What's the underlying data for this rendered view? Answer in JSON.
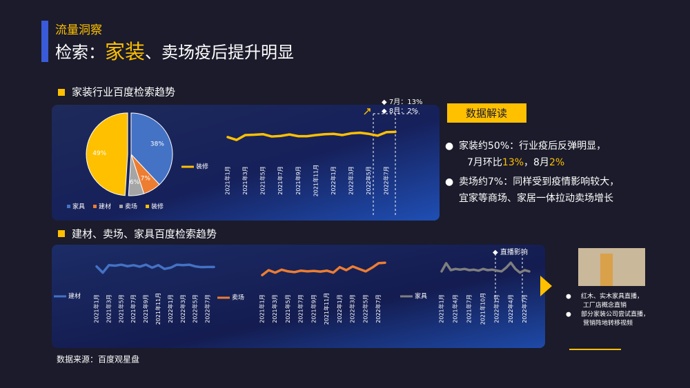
{
  "header": {
    "section": "流量洞察",
    "title_prefix": "检索：",
    "title_highlight": "家装",
    "title_suffix": "、卖场疫后提升明显"
  },
  "section1": "家装行业百度检索趋势",
  "section2": "建材、卖场、家具百度检索趋势",
  "source": "数据来源：百度观星盘",
  "insights": {
    "title": "数据解读",
    "items": [
      {
        "lines": [
          [
            "家装约50%：行业疫后反弹明显，"
          ],
          [
            "7月环比",
            "13%",
            "，8月",
            "2%"
          ]
        ]
      },
      {
        "lines": [
          [
            "卖场约7%：同样受到疫情影响较大，"
          ],
          [
            "宜家等商场、家居一体拉动卖场增长"
          ]
        ]
      }
    ]
  },
  "side_notes": [
    {
      "lines": [
        "红木、实木家具直播，",
        "工厂店概念直销"
      ]
    },
    {
      "lines": [
        "部分家装公司尝试直播，",
        "营销阵地转移视频"
      ]
    }
  ],
  "chart_data": [
    {
      "type": "pie",
      "categories": [
        "家具",
        "建材",
        "卖场",
        "装修"
      ],
      "values": [
        38,
        7,
        6,
        49
      ],
      "value_labels": [
        "38%",
        "7%",
        "6%",
        "49%"
      ],
      "colors": [
        "#4472c4",
        "#ed7d31",
        "#a5a5a5",
        "#ffc000"
      ],
      "legend": "bottom"
    },
    {
      "type": "line",
      "categories": [
        "2021年1月",
        null,
        "2021年3月",
        null,
        "2021年5月",
        null,
        "2021年7月",
        null,
        "2021年9月",
        null,
        "2021年11月",
        null,
        "2022年1月",
        null,
        "2022年3月",
        null,
        "2022年5月",
        null,
        "2022年7月",
        null
      ],
      "series": [
        {
          "name": "装修",
          "color": "#ffc000",
          "values": [
            55,
            45,
            62,
            63,
            65,
            57,
            59,
            64,
            58,
            58,
            62,
            65,
            66,
            62,
            68,
            70,
            66,
            60,
            72,
            73
          ]
        }
      ],
      "ylim": [
        0,
        100
      ],
      "annotations": [
        "7月：13%",
        "8月：2%"
      ],
      "legend": "left"
    },
    {
      "type": "line",
      "categories": [
        "2021年1月",
        null,
        "2021年3月",
        null,
        "2021年5月",
        null,
        "2021年7月",
        null,
        "2021年9月",
        null,
        "2021年11月",
        null,
        "2022年1月",
        null,
        "2022年3月",
        null,
        "2022年5月",
        null,
        "2022年7月",
        null
      ],
      "series": [
        {
          "name": "建材",
          "color": "#4472c4",
          "values": [
            65,
            40,
            70,
            68,
            72,
            66,
            70,
            64,
            72,
            60,
            70,
            55,
            60,
            72,
            70,
            72,
            65,
            62,
            63,
            63
          ]
        }
      ],
      "ylim": [
        0,
        100
      ],
      "legend": "left"
    },
    {
      "type": "line",
      "categories": [
        "2021年1月",
        null,
        "2021年3月",
        null,
        "2021年5月",
        null,
        "2021年7月",
        null,
        "2021年9月",
        null,
        "2021年11月",
        null,
        "2022年1月",
        null,
        "2022年3月",
        null,
        "2022年5月",
        null,
        "2022年7月",
        null
      ],
      "series": [
        {
          "name": "卖场",
          "color": "#ed7d31",
          "values": [
            30,
            50,
            40,
            52,
            45,
            42,
            48,
            45,
            47,
            44,
            48,
            40,
            62,
            50,
            65,
            55,
            45,
            60,
            78,
            80
          ]
        }
      ],
      "ylim": [
        0,
        100
      ],
      "legend": "left"
    },
    {
      "type": "line",
      "categories": [
        "2021年1月",
        null,
        null,
        "2021年4月",
        null,
        null,
        "2021年7月",
        null,
        null,
        "2021年10月",
        null,
        null,
        "2022年1月",
        null,
        null,
        "2022年4月",
        null,
        null,
        "2022年7月",
        null
      ],
      "series": [
        {
          "name": "家具",
          "color": "#7f7f7f",
          "values": [
            45,
            78,
            50,
            55,
            52,
            55,
            50,
            52,
            48,
            55,
            50,
            52,
            48,
            45,
            60,
            80,
            55,
            40,
            50,
            45
          ]
        }
      ],
      "ylim": [
        0,
        100
      ],
      "annotations": [
        "直播影响"
      ],
      "legend": "left"
    }
  ]
}
